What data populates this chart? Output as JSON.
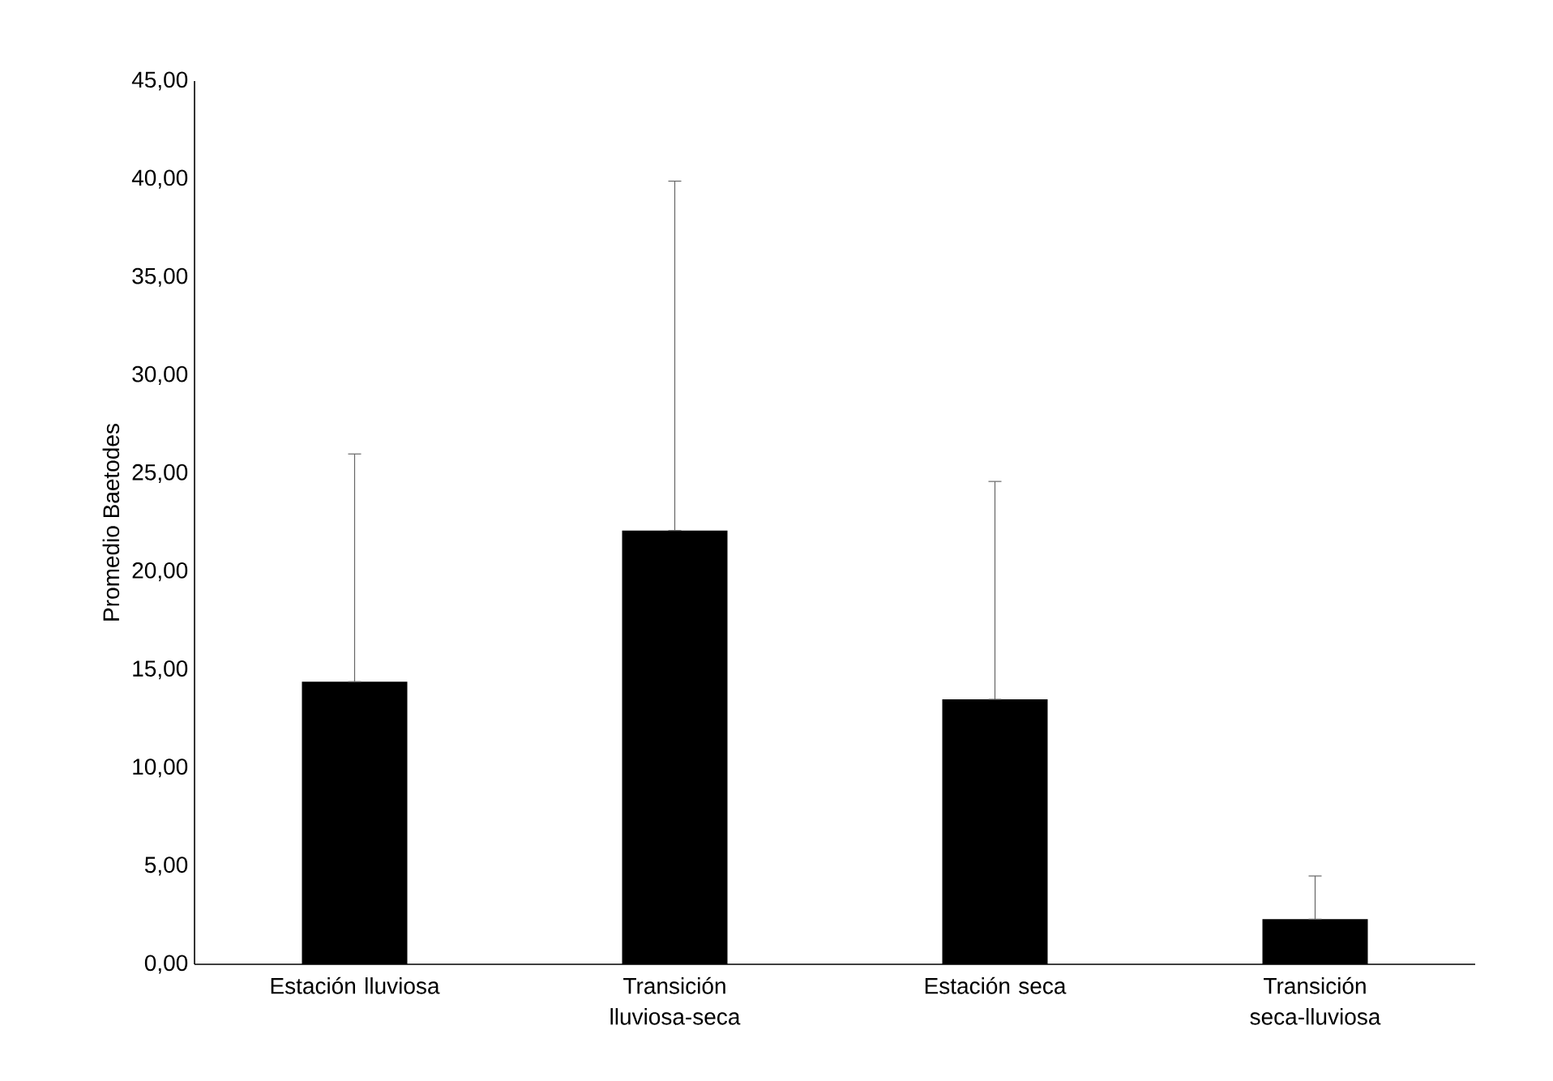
{
  "chart_data": {
    "type": "bar",
    "ylabel": "Promedio Baetodes",
    "categories": [
      "Estación lluviosa",
      "Transición lluviosa-seca",
      "Estación seca",
      "Transición seca-lluviosa"
    ],
    "values": [
      14.4,
      22.1,
      13.5,
      2.3
    ],
    "errors": [
      [
        14.4,
        26.0
      ],
      [
        22.1,
        39.9
      ],
      [
        13.5,
        24.6
      ],
      [
        2.3,
        4.5
      ]
    ],
    "color": "#000000",
    "ylim": [
      0,
      45
    ],
    "yticks": [
      {
        "value": 0,
        "label": "0,00"
      },
      {
        "value": 5,
        "label": "5,00"
      },
      {
        "value": 10,
        "label": "10,00"
      },
      {
        "value": 15,
        "label": "15,00"
      },
      {
        "value": 20,
        "label": "20,00"
      },
      {
        "value": 25,
        "label": "25,00"
      },
      {
        "value": 30,
        "label": "30,00"
      },
      {
        "value": 35,
        "label": "35,00"
      },
      {
        "value": 40,
        "label": "40,00"
      },
      {
        "value": 45,
        "label": "45,00"
      }
    ]
  }
}
